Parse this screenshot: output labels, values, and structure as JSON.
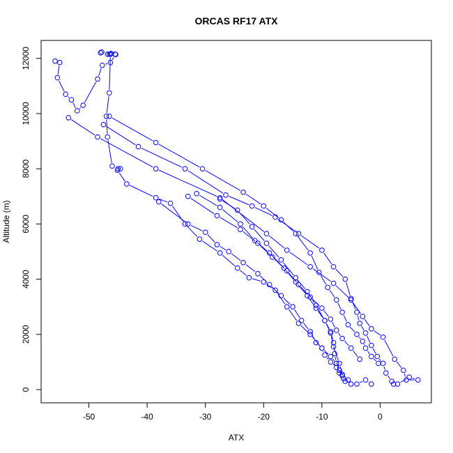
{
  "chart_data": {
    "type": "line",
    "title": "ORCAS RF17 ATX",
    "xlabel": "ATX",
    "ylabel": "Altitude (m)",
    "xlim": [
      -58.2,
      8.8
    ],
    "ylim": [
      -480,
      12650
    ],
    "xticks": [
      -50,
      -40,
      -30,
      -20,
      -10,
      0
    ],
    "yticks": [
      0,
      2000,
      4000,
      6000,
      8000,
      10000,
      12000
    ],
    "grid": false,
    "legend": "none",
    "series_color": "#0000ff",
    "marker": "open-circle",
    "series": [
      {
        "x": [
          -48.0,
          -47.8,
          -46.8,
          -46.5,
          -46.2,
          -45.5,
          -45.4,
          -46.3,
          -47.7,
          -48.5,
          -51.0,
          -52.0,
          -53.0,
          -54.0,
          -55.4,
          -55.0,
          -55.8
        ],
        "y": [
          12200,
          12230,
          12150,
          12150,
          12180,
          12150,
          12140,
          11850,
          11750,
          11250,
          10300,
          10100,
          10500,
          10700,
          11300,
          11850,
          11900
        ]
      },
      {
        "x": [
          -53.5,
          -48.5,
          -38.5,
          -27.5,
          -19.5,
          -16.0,
          -12.0,
          -8.0,
          -5.0,
          -3.0,
          -1.5,
          0.5,
          2.5,
          4.0,
          4.5,
          6.5,
          5.0,
          3.0
        ],
        "y": [
          9850,
          9150,
          8000,
          6950,
          5650,
          5050,
          4450,
          3850,
          3250,
          2650,
          2200,
          1900,
          1100,
          700,
          350,
          350,
          450,
          200
        ]
      },
      {
        "x": [
          -47.5,
          -41.5,
          -33.5,
          -26.5,
          -22.0,
          -18.0,
          -14.0,
          -10.0,
          -8.0,
          -6.0,
          -5.0,
          -4.0,
          -3.5,
          -2.5,
          -1.5,
          -0.5,
          0.5,
          1.0,
          2.0,
          2.3
        ],
        "y": [
          9600,
          8800,
          8000,
          7050,
          6650,
          6250,
          5650,
          5050,
          4450,
          4000,
          3300,
          2800,
          2400,
          2050,
          1600,
          1200,
          950,
          600,
          300,
          200
        ]
      },
      {
        "x": [
          -46.5,
          -38.5,
          -30.5,
          -23.5,
          -20.0,
          -17.0,
          -14.5,
          -12.0,
          -10.5,
          -9.0,
          -7.5,
          -6.5,
          -5.5,
          -4.0,
          -3.0,
          -2.5,
          -1.5,
          -0.3
        ],
        "y": [
          9900,
          8950,
          8000,
          7150,
          6650,
          6150,
          5650,
          4950,
          4250,
          3700,
          3250,
          2800,
          2350,
          2000,
          1750,
          1500,
          1200,
          950
        ]
      },
      {
        "x": [
          -46.3,
          -46.5,
          -47.0,
          -46.8,
          -46.0,
          -45.0,
          -44.6,
          -45.1,
          -43.5,
          -38.5,
          -36.0,
          -33.5,
          -31.0,
          -27.5,
          -24.5,
          -22.5,
          -20.0,
          -18.0,
          -16.0,
          -14.0,
          -12.0,
          -10.0,
          -8.5,
          -7.5,
          -7.0,
          -6.5,
          -6.0,
          -5.0,
          -4.0,
          -2.5,
          -1.5
        ],
        "y": [
          12150,
          10750,
          9900,
          9150,
          8100,
          8000,
          8000,
          7950,
          7450,
          6950,
          6750,
          6000,
          5450,
          4950,
          4400,
          4050,
          3900,
          3600,
          3000,
          2400,
          2000,
          1500,
          1200,
          950,
          700,
          500,
          300,
          200,
          200,
          350,
          200
        ]
      },
      {
        "x": [
          -38.0,
          -33.0,
          -30.0,
          -28.0,
          -26.0,
          -23.5,
          -21.0,
          -19.0,
          -17.0,
          -15.0,
          -13.5,
          -12.0,
          -11.0,
          -10.0,
          -9.5,
          -8.5,
          -7.5,
          -6.5,
          -5.5
        ],
        "y": [
          6800,
          6000,
          5700,
          5250,
          5000,
          4600,
          4200,
          3800,
          3400,
          3000,
          2500,
          2100,
          1700,
          1500,
          1250,
          1000,
          800,
          550,
          350
        ]
      },
      {
        "x": [
          -33.0,
          -28.0,
          -24.0,
          -21.0,
          -18.5,
          -16.0,
          -14.0,
          -12.0,
          -10.0,
          -8.5,
          -7.5,
          -6.5,
          -5.0,
          -3.5
        ],
        "y": [
          7000,
          6300,
          5800,
          5300,
          4800,
          4300,
          3800,
          3350,
          2950,
          2550,
          2150,
          1850,
          1500,
          1100
        ]
      },
      {
        "x": [
          -31.5,
          -27.5,
          -24.0,
          -21.5,
          -19.0,
          -16.5,
          -14.5,
          -12.5,
          -11.0,
          -9.5,
          -8.5,
          -8.0,
          -7.8,
          -7.5,
          -7.0
        ],
        "y": [
          7100,
          6600,
          6000,
          5400,
          4950,
          4400,
          3900,
          3400,
          2950,
          2500,
          2100,
          1700,
          1300,
          950,
          600
        ]
      },
      {
        "x": [
          -27.5,
          -24.5,
          -22.0,
          -19.5,
          -17.0,
          -14.5,
          -12.5,
          -11.0,
          -9.5,
          -8.5,
          -8.0,
          -7.0,
          -6.3
        ],
        "y": [
          6900,
          6500,
          5900,
          5300,
          4700,
          4050,
          3550,
          3050,
          2500,
          2050,
          1550,
          950,
          400
        ]
      }
    ]
  }
}
